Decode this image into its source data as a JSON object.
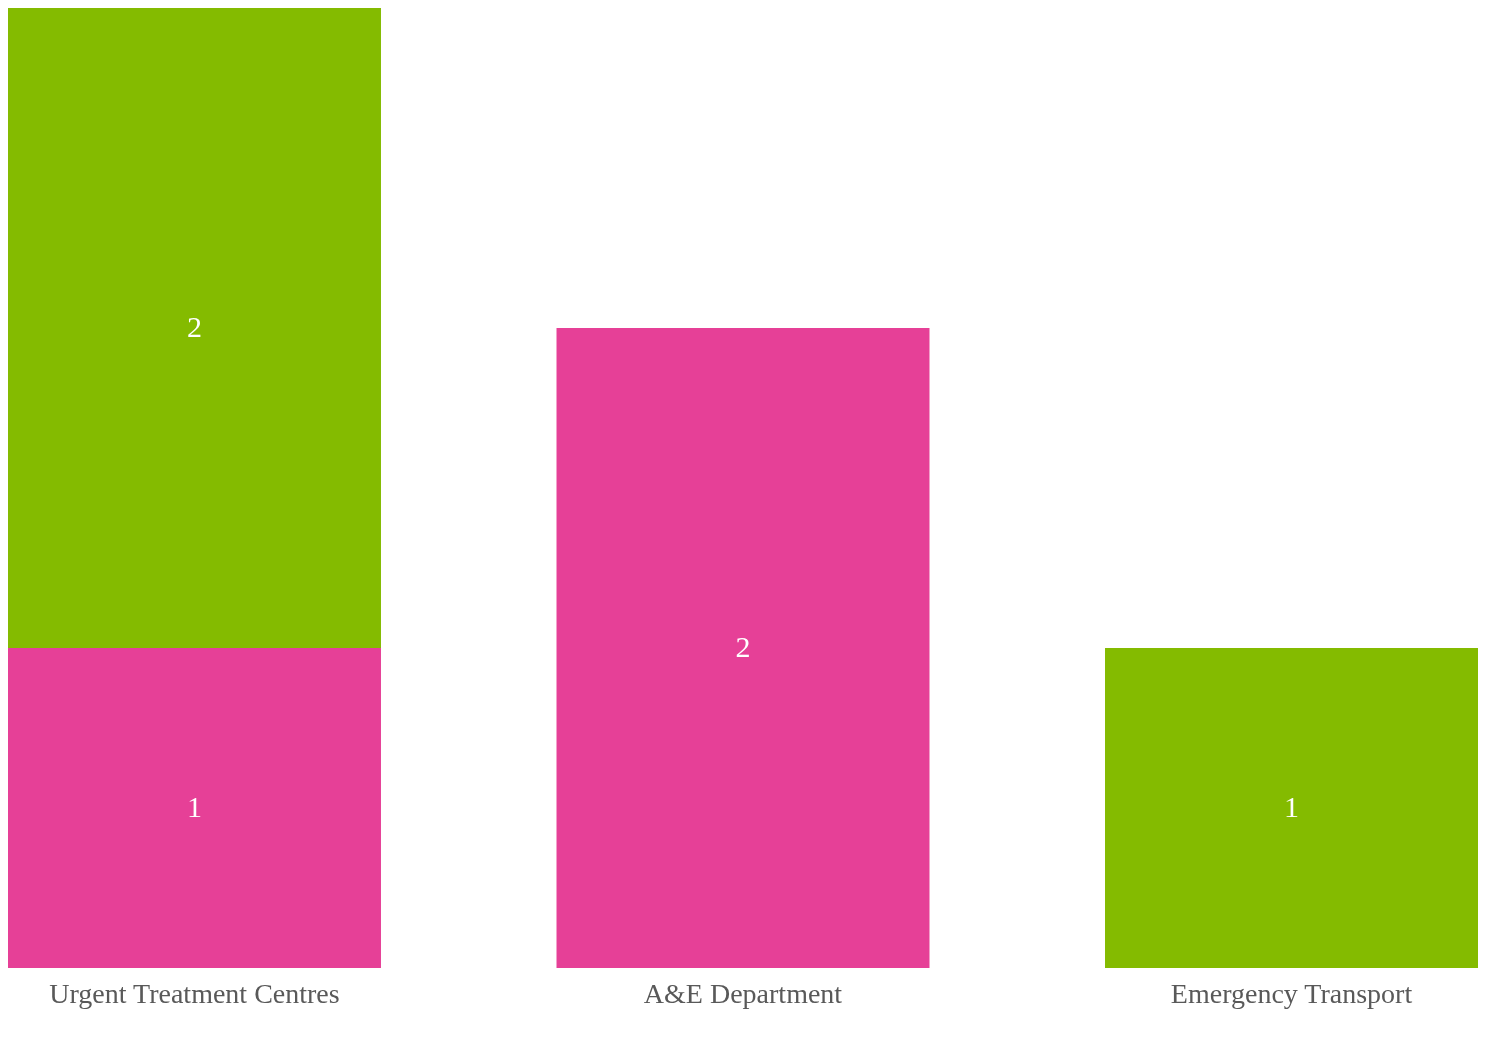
{
  "chart_data": {
    "type": "bar",
    "stacked": true,
    "categories": [
      "Urgent Treatment Centres",
      "A&E Department",
      "Emergency Transport"
    ],
    "series": [
      {
        "color": "#e64097",
        "values": [
          1,
          2,
          null
        ]
      },
      {
        "color": "#84bb00",
        "values": [
          2,
          null,
          1
        ]
      }
    ],
    "ylim": [
      0,
      3
    ],
    "data_labels": true,
    "grid": false
  }
}
